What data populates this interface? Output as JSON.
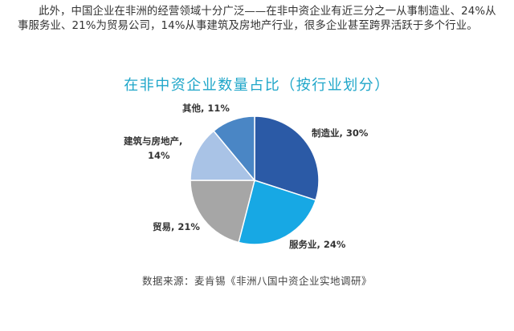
{
  "intro_text": "此外，中国企业在非洲的经营领域十分广泛——在非中资企业有近三分之一从事制造业、24%从事服务业、21%为贸易公司，14%从事建筑及房地产行业，很多企业甚至跨界活跃于多个行业。",
  "source_text": "数据来源：麦肯锡《非洲八国中资企业实地调研》",
  "chart_data": {
    "type": "pie",
    "title": "在非中资企业数量占比（按行业划分）",
    "start_angle_deg": 0,
    "direction": "clockwise",
    "slices": [
      {
        "label": "制造业, 30%",
        "value": 30,
        "color": "#2b5aa6"
      },
      {
        "label": "服务业, 24%",
        "value": 24,
        "color": "#17a8e4"
      },
      {
        "label": "贸易, 21%",
        "value": 21,
        "color": "#a6a6a6"
      },
      {
        "label": "建筑与房地产, 14%",
        "value": 14,
        "color": "#a9c3e6"
      },
      {
        "label": "其他, 11%",
        "value": 11,
        "color": "#4a86c5"
      }
    ]
  }
}
